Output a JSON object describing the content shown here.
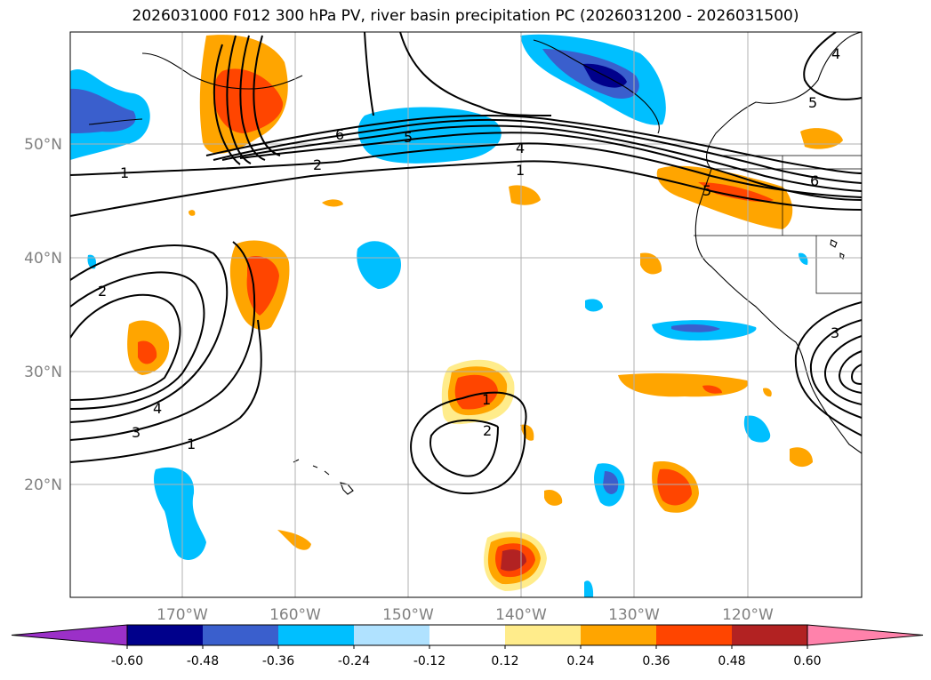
{
  "title": "2026031000 F012 300 hPa PV, river basin precipitation PC (2026031200 - 2026031500)",
  "lat_labels": [
    "50°N",
    "40°N",
    "30°N",
    "20°N"
  ],
  "lon_labels": [
    "170°W",
    "160°W",
    "150°W",
    "140°W",
    "130°W",
    "120°W"
  ],
  "colorbar": {
    "levels": [
      "-0.60",
      "-0.48",
      "-0.36",
      "-0.24",
      "-0.12",
      "0.12",
      "0.24",
      "0.36",
      "0.48",
      "0.60"
    ],
    "colors": [
      "#9b30c8",
      "#00008b",
      "#3a5fcd",
      "#00bfff",
      "#b0e2ff",
      "#ffffff",
      "#ffec8b",
      "#ffa500",
      "#ff4500",
      "#b22222",
      "#ff82ab"
    ]
  },
  "contour_labels": [
    "1",
    "6",
    "5",
    "2",
    "4",
    "1",
    "5",
    "6",
    "5",
    "4",
    "2",
    "4",
    "3",
    "1",
    "1",
    "2",
    "3"
  ],
  "palette": {
    "lightblue": "#b0e2ff",
    "blue": "#00bfff",
    "medblue": "#3a5fcd",
    "navy": "#00008b",
    "yellow": "#ffec8b",
    "orange": "#ffa500",
    "red": "#ff4500",
    "darkred": "#b22222"
  }
}
